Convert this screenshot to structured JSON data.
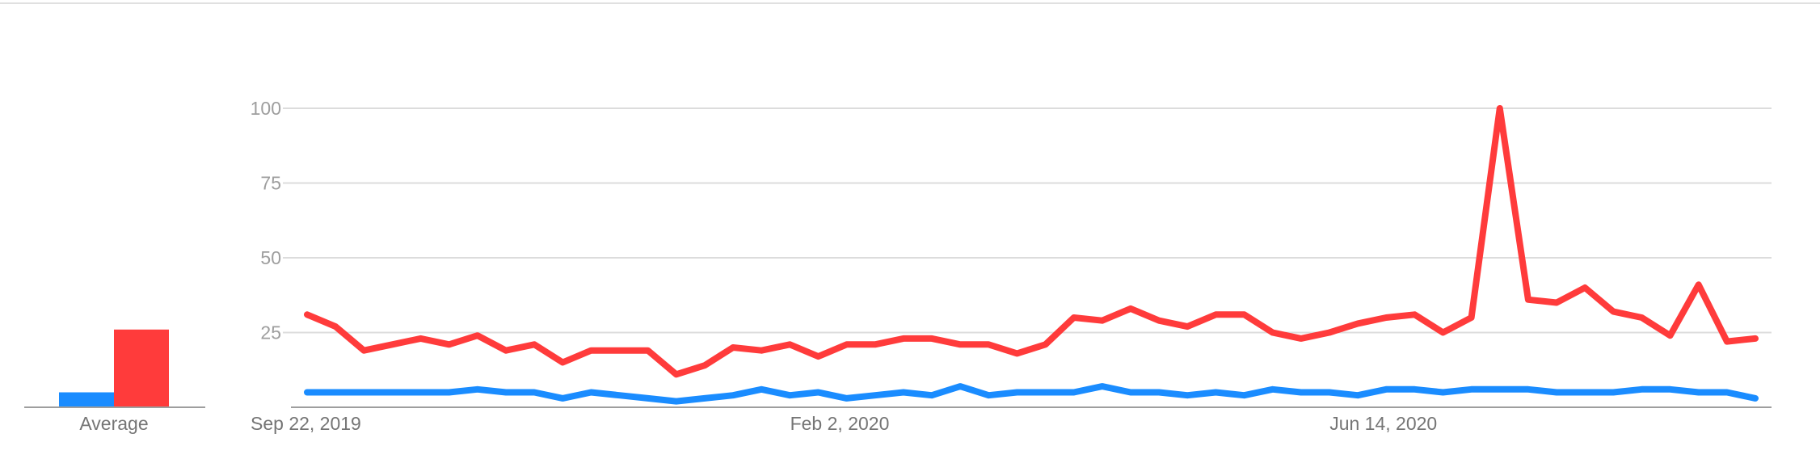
{
  "colors": {
    "series_1": "#1a8cff",
    "series_2": "#ff3b3b",
    "grid": "#dcdcdc",
    "axis": "#9e9e9e"
  },
  "average_panel": {
    "label": "Average",
    "values": [
      5,
      26
    ]
  },
  "chart_data": {
    "type": "line",
    "title": "",
    "xlabel": "",
    "ylabel": "",
    "ylim": [
      0,
      100
    ],
    "yticks": [
      25,
      50,
      75,
      100
    ],
    "grid": true,
    "x_tick_labels": [
      {
        "index": 0,
        "label": "Sep 22, 2019"
      },
      {
        "index": 19,
        "label": "Feb 2, 2020"
      },
      {
        "index": 38,
        "label": "Jun 14, 2020"
      }
    ],
    "point_count": 52,
    "series": [
      {
        "color": "#1a8cff",
        "values": [
          5,
          5,
          5,
          5,
          5,
          5,
          6,
          5,
          5,
          3,
          5,
          4,
          3,
          2,
          3,
          4,
          6,
          4,
          5,
          3,
          4,
          5,
          4,
          7,
          4,
          5,
          5,
          5,
          7,
          5,
          5,
          4,
          5,
          4,
          6,
          5,
          5,
          4,
          6,
          6,
          5,
          6,
          6,
          6,
          5,
          5,
          5,
          6,
          6,
          5,
          5,
          3
        ]
      },
      {
        "color": "#ff3b3b",
        "values": [
          31,
          27,
          19,
          21,
          23,
          21,
          24,
          19,
          21,
          15,
          19,
          19,
          19,
          11,
          14,
          20,
          19,
          21,
          17,
          21,
          21,
          23,
          23,
          21,
          21,
          18,
          21,
          30,
          29,
          33,
          29,
          27,
          31,
          31,
          25,
          23,
          25,
          28,
          30,
          31,
          25,
          30,
          100,
          36,
          35,
          40,
          32,
          30,
          24,
          41,
          22,
          23
        ]
      }
    ]
  }
}
